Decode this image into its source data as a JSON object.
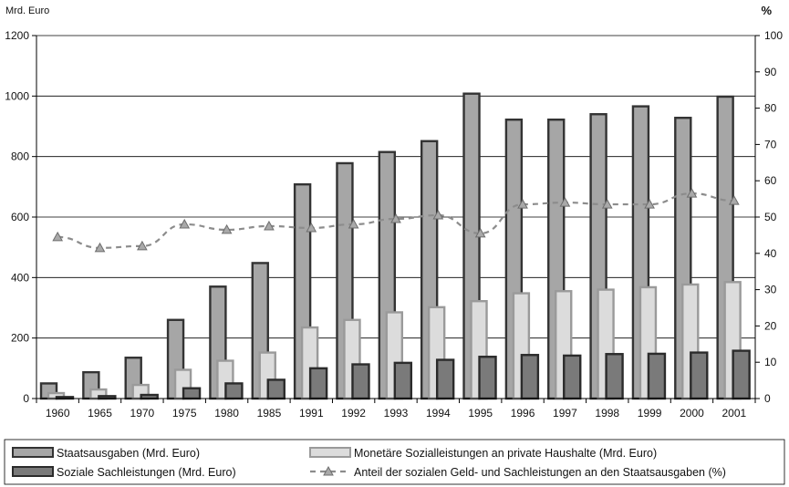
{
  "chart_data": {
    "type": "bar",
    "ylabel_left": "Mrd. Euro",
    "ylabel_right": "%",
    "ylim_left": [
      0,
      1200
    ],
    "ylim_right": [
      0,
      100
    ],
    "yticks_left": [
      "0",
      "200",
      "400",
      "600",
      "800",
      "1000",
      "1200"
    ],
    "yticks_right": [
      "0",
      "10",
      "20",
      "30",
      "40",
      "50",
      "60",
      "70",
      "80",
      "90",
      "100"
    ],
    "grid": "horizontal",
    "legend_position": "bottom",
    "categories": [
      "1960",
      "1965",
      "1970",
      "1975",
      "1980",
      "1985",
      "1991",
      "1992",
      "1993",
      "1994",
      "1995",
      "1996",
      "1997",
      "1998",
      "1999",
      "2000",
      "2001"
    ],
    "series": [
      {
        "name": "Staatsausgaben (Mrd. Euro)",
        "kind": "bar",
        "color": "#a6a6a6",
        "values": [
          50,
          87,
          135,
          260,
          370,
          448,
          708,
          778,
          815,
          851,
          1008,
          922,
          922,
          940,
          966,
          928,
          998
        ]
      },
      {
        "name": "Monetäre Sozialleistungen an private Haushalte (Mrd. Euro)",
        "kind": "bar",
        "color": "#dcdcdc",
        "values": [
          18,
          30,
          45,
          95,
          125,
          152,
          235,
          260,
          285,
          302,
          322,
          348,
          355,
          360,
          368,
          377,
          385
        ]
      },
      {
        "name": "Soziale Sachleistungen (Mrd. Euro)",
        "kind": "bar",
        "color": "#7a7a7a",
        "values": [
          5,
          8,
          12,
          34,
          50,
          62,
          100,
          113,
          118,
          128,
          138,
          144,
          142,
          147,
          148,
          152,
          158
        ]
      },
      {
        "name": "Anteil der sozialen Geld- und Sachleistungen an den Staatsausgaben (%)",
        "kind": "line",
        "axis": "right",
        "color": "#8c8c8c",
        "values": [
          44.5,
          41.5,
          42,
          48,
          46.5,
          47.5,
          47,
          48,
          49.5,
          50.5,
          45.5,
          53.5,
          54,
          53.5,
          53.5,
          56.5,
          54.5
        ]
      }
    ]
  }
}
